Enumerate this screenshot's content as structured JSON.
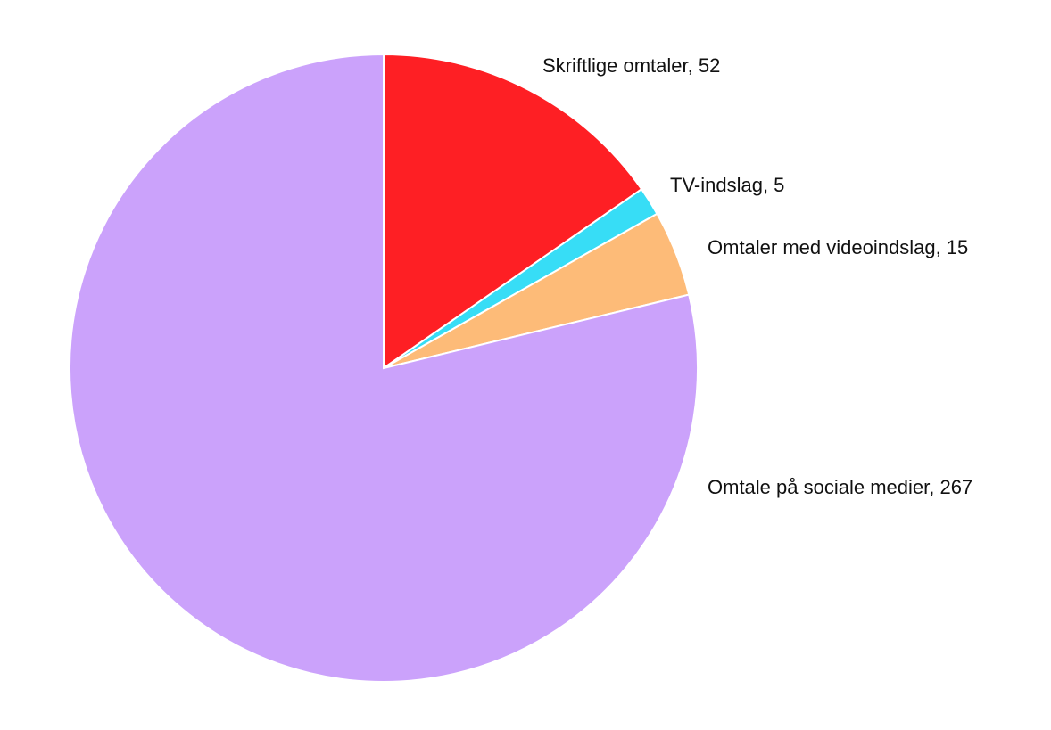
{
  "chart_data": {
    "type": "pie",
    "values": [
      52,
      5,
      15,
      267
    ],
    "value_labels": [
      "Skriftlige omtaler, 52",
      "TV-indslag, 5",
      "Omtaler med videoindslag, 15",
      "Omtale på sociale medier, 267"
    ],
    "colors": [
      "#fe1f24",
      "#37ddf6",
      "#fdbb78",
      "#cba2fb"
    ]
  }
}
